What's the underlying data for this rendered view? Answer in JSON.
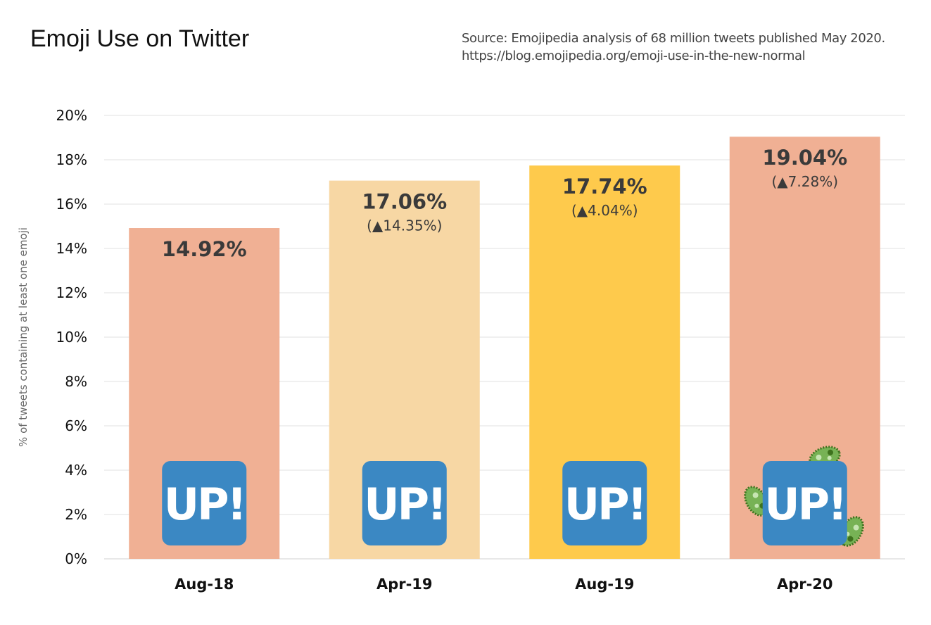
{
  "header": {
    "title": "Emoji Use on Twitter",
    "source_line1": "Source: Emojipedia analysis of 68 million tweets published May 2020.",
    "source_line2": "https://blog.emojipedia.org/emoji-use-in-the-new-normal"
  },
  "chart_data": {
    "type": "bar",
    "title": "Emoji Use on Twitter",
    "xlabel": "",
    "ylabel": "% of tweets containing at least one emoji",
    "ylim": [
      0,
      20
    ],
    "yticks": [
      "0%",
      "2%",
      "4%",
      "6%",
      "8%",
      "10%",
      "12%",
      "14%",
      "16%",
      "18%",
      "20%"
    ],
    "grid": true,
    "categories": [
      "Aug-18",
      "Apr-19",
      "Aug-19",
      "Apr-20"
    ],
    "values": [
      14.92,
      17.06,
      17.74,
      19.04
    ],
    "value_labels": [
      "14.92%",
      "17.06%",
      "17.74%",
      "19.04%"
    ],
    "change_labels": [
      "",
      "(▲14.35%)",
      "(▲4.04%)",
      "(▲7.28%)"
    ],
    "bar_colors": [
      "#F0B094",
      "#F7D7A4",
      "#FECA4C",
      "#F0B094"
    ],
    "badge_text": "UP!",
    "badge_color": "#3B88C3",
    "badge_icon": "up-button-emoji",
    "microbe_icon_on": "Apr-20",
    "microbe_color": "#77B255"
  }
}
